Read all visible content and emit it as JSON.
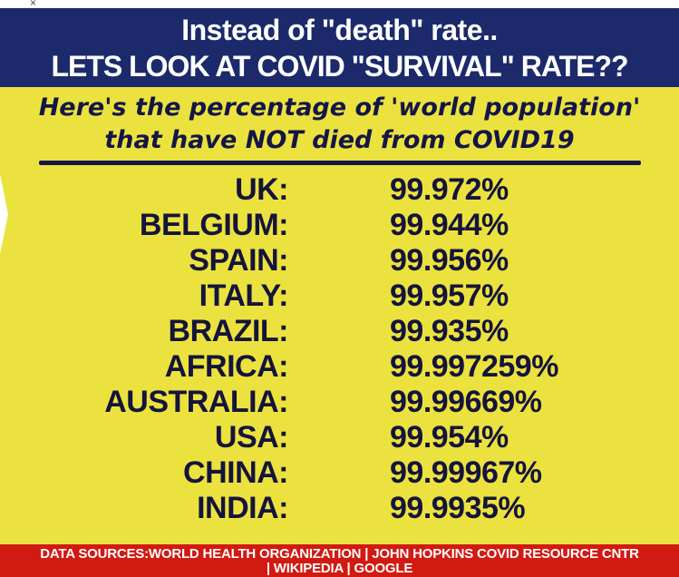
{
  "top_bar": {
    "close_glyph": "×"
  },
  "header": {
    "line1": "Instead of \"death\" rate..",
    "line2": "LETS LOOK AT COVID \"SURVIVAL\" RATE??"
  },
  "subheader": {
    "line1": "Here's the percentage of 'world population'",
    "line2": "that have NOT died from COVID19"
  },
  "table": {
    "rows": [
      {
        "label": "UK:",
        "value": "99.972%"
      },
      {
        "label": "BELGIUM:",
        "value": "99.944%"
      },
      {
        "label": "SPAIN:",
        "value": "99.956%"
      },
      {
        "label": "ITALY:",
        "value": "99.957%"
      },
      {
        "label": "BRAZIL:",
        "value": "99.935%"
      },
      {
        "label": "AFRICA:",
        "value": "99.997259%"
      },
      {
        "label": "AUSTRALIA:",
        "value": "99.99669%"
      },
      {
        "label": "USA:",
        "value": "99.954%"
      },
      {
        "label": "CHINA:",
        "value": "99.99967%"
      },
      {
        "label": "INDIA:",
        "value": "99.9935%"
      }
    ]
  },
  "footer": {
    "line1": "DATA SOURCES:WORLD HEALTH ORGANIZATION | JOHN HOPKINS COVID RESOURCE CNTR",
    "line2": "| WIKIPEDIA | GOOGLE"
  },
  "colors": {
    "header_navy": "#1c2a6b",
    "body_yellow": "#ece23f",
    "text_navy": "#14143c",
    "footer_red": "#d11a12",
    "text_white": "#ffffff"
  },
  "chart_data": {
    "type": "table",
    "title": "Percentage of 'world population' that have NOT died from COVID19",
    "header_line1": "Instead of \"death\" rate..",
    "header_line2": "LETS LOOK AT COVID \"SURVIVAL\" RATE??",
    "categories": [
      "UK",
      "BELGIUM",
      "SPAIN",
      "ITALY",
      "BRAZIL",
      "AFRICA",
      "AUSTRALIA",
      "USA",
      "CHINA",
      "INDIA"
    ],
    "values": [
      99.972,
      99.944,
      99.956,
      99.957,
      99.935,
      99.997259,
      99.99669,
      99.954,
      99.99967,
      99.9935
    ],
    "value_unit": "%",
    "sources": "DATA SOURCES: WORLD HEALTH ORGANIZATION | JOHN HOPKINS COVID RESOURCE CNTR | WIKIPEDIA | GOOGLE"
  }
}
